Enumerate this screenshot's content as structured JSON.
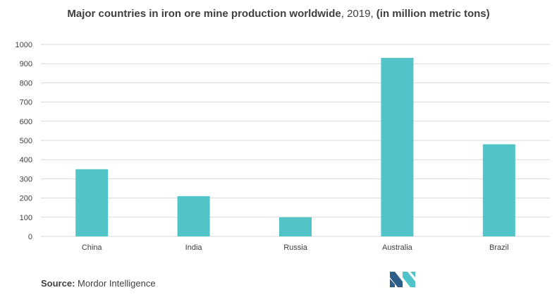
{
  "chart_data": {
    "type": "bar",
    "title_bold_1": "Major countries in iron ore mine production worldwide",
    "title_plain": ", 2019, ",
    "title_bold_2": "(in million metric tons)",
    "categories": [
      "China",
      "India",
      "Russia",
      "Australia",
      "Brazil"
    ],
    "values": [
      350,
      210,
      100,
      930,
      480
    ],
    "ylim": [
      0,
      1000
    ],
    "yticks": [
      "0",
      "100",
      "200",
      "300",
      "400",
      "500",
      "600",
      "700",
      "800",
      "900",
      "1000"
    ],
    "xlabel": "",
    "ylabel": "",
    "grid": true,
    "bar_color": "#50C4C8"
  },
  "source": {
    "label": "Source:",
    "text": "Mordor Intelligence"
  },
  "colors": {
    "grid": "#D9D9D9",
    "text": "#404040",
    "logo_dark": "#2E5D8A",
    "logo_light": "#50C4C8"
  }
}
